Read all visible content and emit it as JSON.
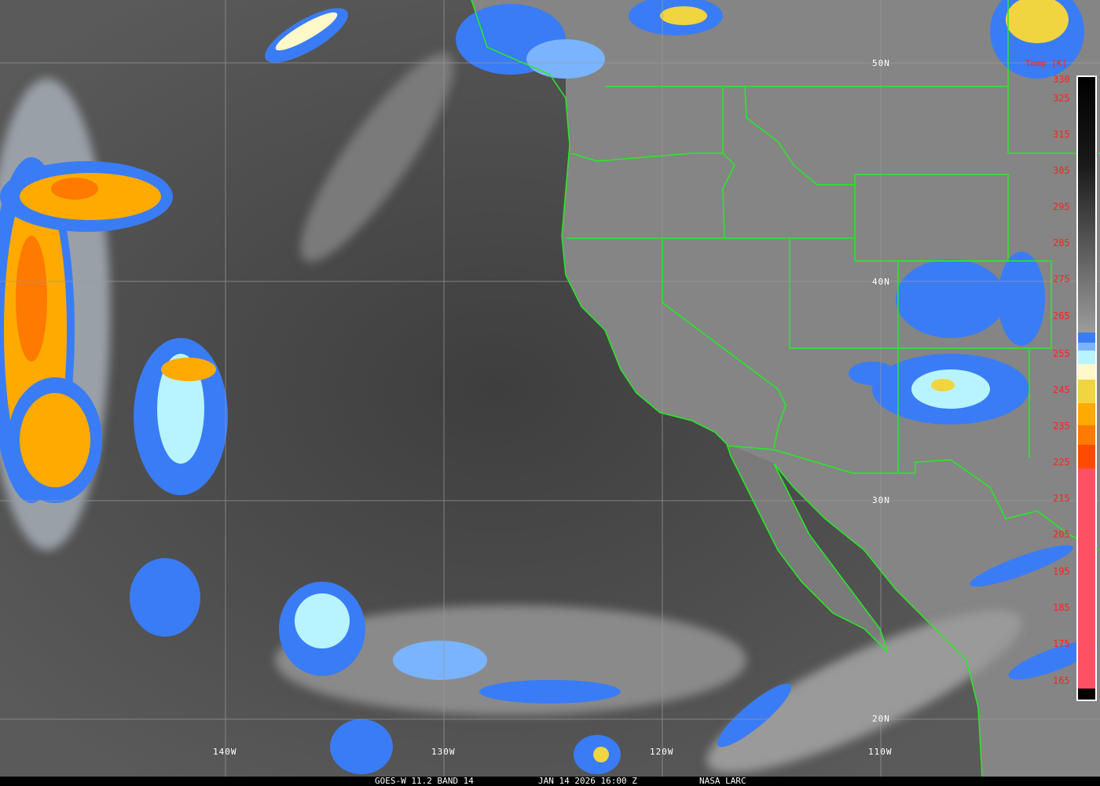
{
  "caption": {
    "satellite": "GOES-W 11.2 BAND 14",
    "datetime": "JAN 14 2026 16:00 Z",
    "credit": "NASA LARC"
  },
  "latitude_labels": [
    "50N",
    "40N",
    "30N",
    "20N"
  ],
  "longitude_labels": [
    "140W",
    "130W",
    "120W",
    "110W"
  ],
  "colorbar": {
    "title": "Temp [K]",
    "ticks": [
      "330",
      "325",
      "315",
      "305",
      "295",
      "285",
      "275",
      "265",
      "255",
      "245",
      "235",
      "225",
      "215",
      "205",
      "195",
      "185",
      "175",
      "165"
    ],
    "range_k": [
      165,
      330
    ],
    "colors": {
      "warm_black": "#000000",
      "gray_mid": "#9a9a9a",
      "blue": "#3a7cf5",
      "light_blue": "#7ab4ff",
      "pale_cyan": "#b8f4ff",
      "cream": "#fff8c8",
      "yellow": "#f0d440",
      "gold": "#ffaa00",
      "orange": "#ff7a00",
      "red_orange": "#ff4a00",
      "pink": "#ff5064"
    }
  },
  "boundary_color": "#22ee22"
}
